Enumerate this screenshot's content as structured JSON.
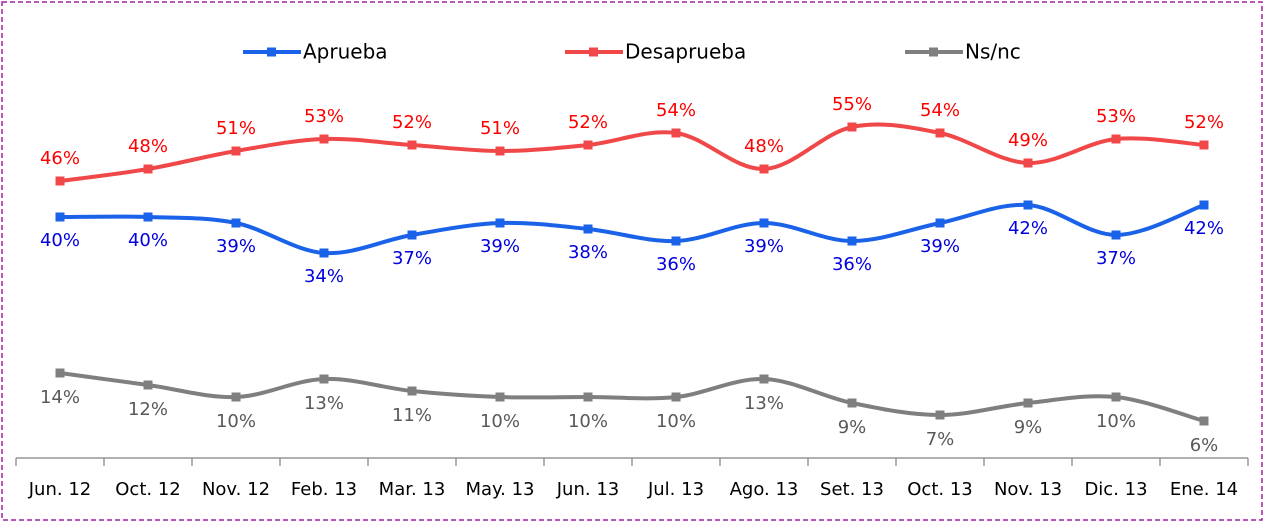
{
  "chart_data": {
    "type": "line",
    "categories": [
      "Jun. 12",
      "Oct. 12",
      "Nov. 12",
      "Feb. 13",
      "Mar. 13",
      "May. 13",
      "Jun. 13",
      "Jul. 13",
      "Ago. 13",
      "Set. 13",
      "Oct. 13",
      "Nov. 13",
      "Dic. 13",
      "Ene. 14"
    ],
    "series": [
      {
        "name": "Aprueba",
        "color": "#1a62e8",
        "label_color": "#0000e0",
        "values": [
          40,
          40,
          39,
          34,
          37,
          39,
          38,
          36,
          39,
          36,
          39,
          42,
          37,
          42
        ],
        "value_labels": [
          "40%",
          "40%",
          "39%",
          "34%",
          "37%",
          "39%",
          "38%",
          "36%",
          "39%",
          "36%",
          "39%",
          "42%",
          "37%",
          "42%"
        ]
      },
      {
        "name": "Desaprueba",
        "color": "#f04848",
        "label_color": "#ff0000",
        "values": [
          46,
          48,
          51,
          53,
          52,
          51,
          52,
          54,
          48,
          55,
          54,
          49,
          53,
          52
        ],
        "value_labels": [
          "46%",
          "48%",
          "51%",
          "53%",
          "52%",
          "51%",
          "52%",
          "54%",
          "48%",
          "55%",
          "54%",
          "49%",
          "53%",
          "52%"
        ]
      },
      {
        "name": "Ns/nc",
        "color": "#7f7f7f",
        "label_color": "#595959",
        "values": [
          14,
          12,
          10,
          13,
          11,
          10,
          10,
          10,
          13,
          9,
          7,
          9,
          10,
          6
        ],
        "value_labels": [
          "14%",
          "12%",
          "10%",
          "13%",
          "11%",
          "10%",
          "10%",
          "10%",
          "13%",
          "9%",
          "7%",
          "9%",
          "10%",
          "6%"
        ]
      }
    ]
  }
}
